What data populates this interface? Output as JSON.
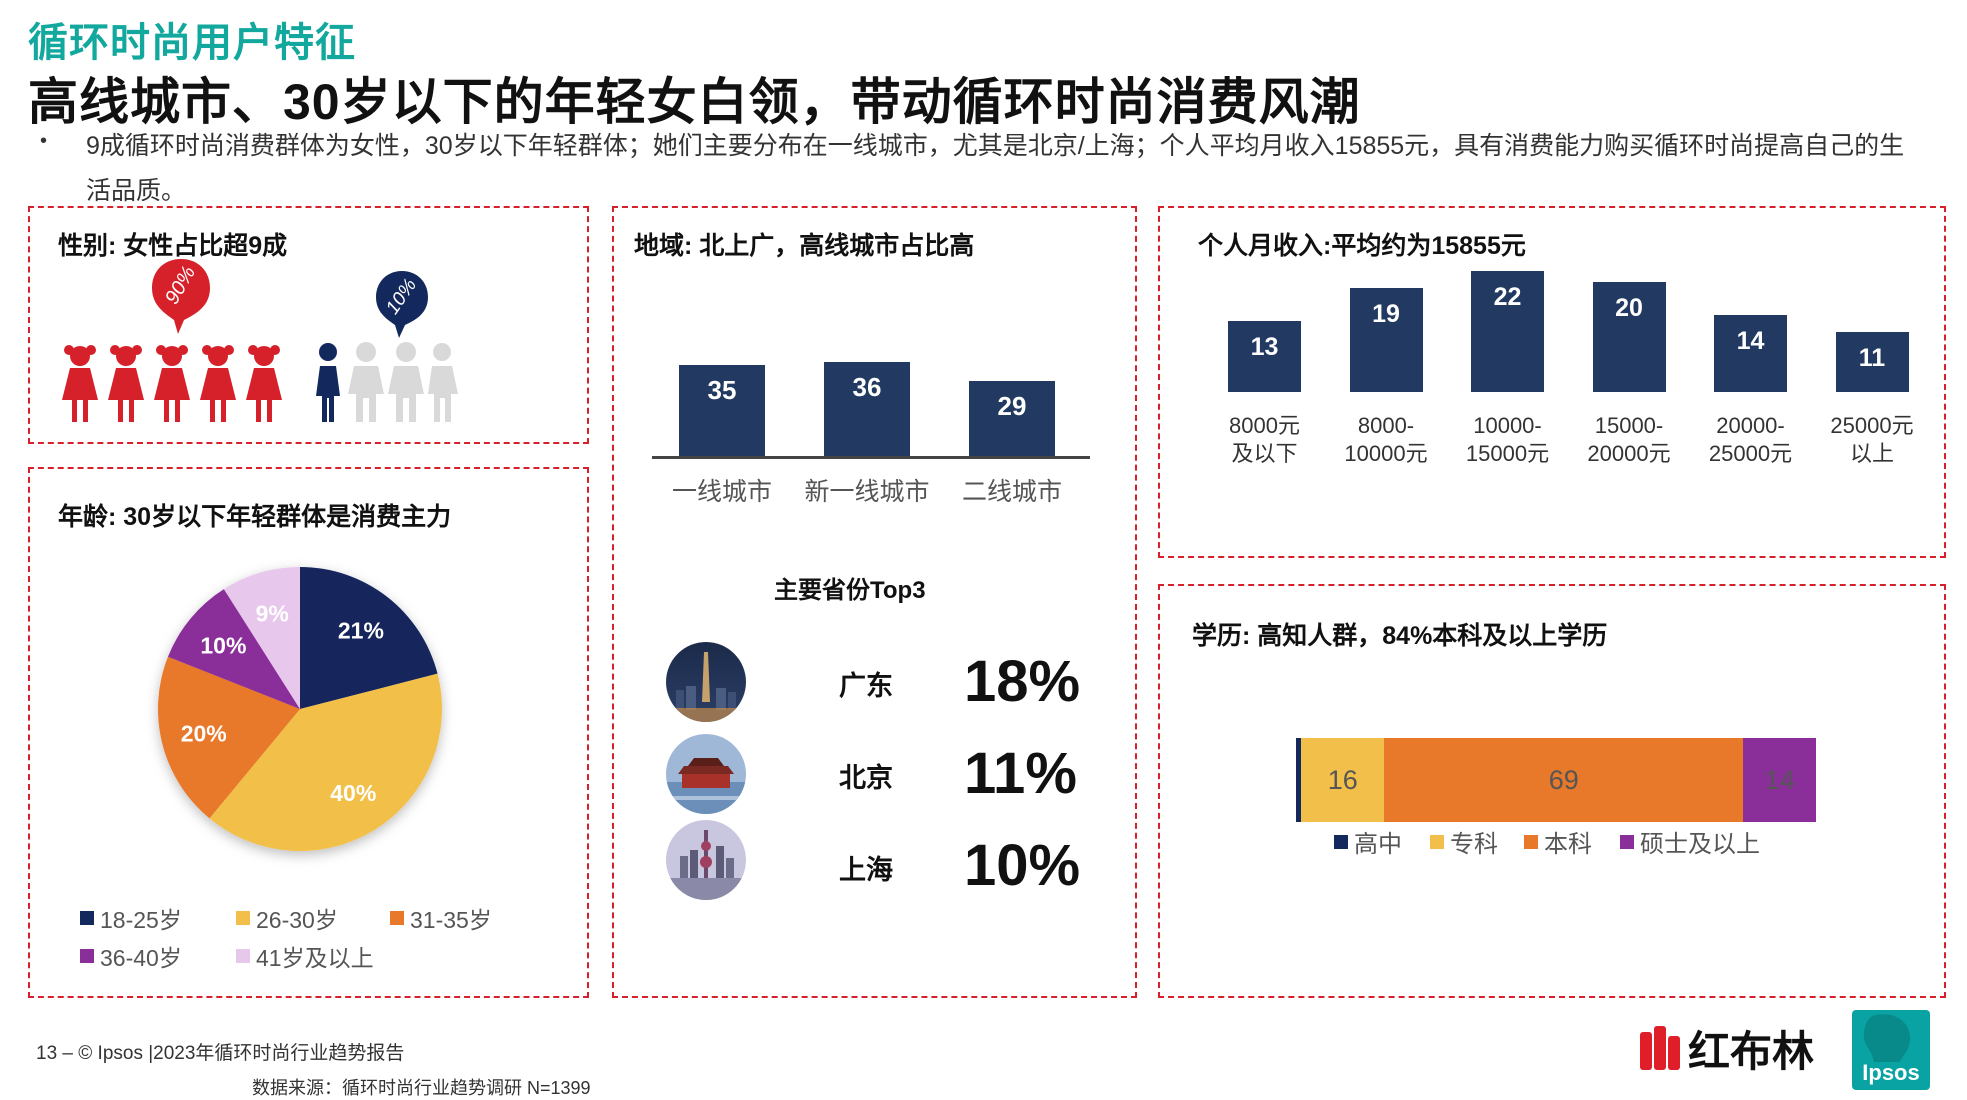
{
  "header": {
    "kicker": "循环时尚用户特征",
    "headline": "高线城市、30岁以下的年轻女白领，带动循环时尚消费风潮",
    "bullet_symbol": "•",
    "bullet": "9成循环时尚消费群体为女性，30岁以下年轻群体；她们主要分布在一线城市，尤其是北京/上海；个人平均月收入15855元，具有消费能力购买循环时尚提高自己的生活品质。"
  },
  "gender": {
    "title": "性别: 女性占比超9成",
    "female_badge": "90%",
    "male_badge": "10%"
  },
  "region": {
    "title": "地域: 北上广，高线城市占比高",
    "top3_title": "主要省份Top3",
    "provinces": [
      {
        "name": "广东",
        "value": "18%"
      },
      {
        "name": "北京",
        "value": "11%"
      },
      {
        "name": "上海",
        "value": "10%"
      }
    ]
  },
  "income_title": "个人月收入:平均约为15855元",
  "age_title": "年龄: 30岁以下年轻群体是消费主力",
  "education_title": "学历: 高知人群，84%本科及以上学历",
  "footer": {
    "page": "13 –  © Ipsos |2023年循环时尚行业趋势报告",
    "source": "数据来源：循环时尚行业趋势调研 N=1399",
    "brand": "红布林",
    "ipsos": "Ipsos"
  },
  "colors": {
    "navy": "#223a61",
    "red": "#d6202a",
    "teal": "#12a89d",
    "age": [
      "#13285c",
      "#f2c04a",
      "#e8792a",
      "#8a2f9a",
      "#e8c7ec"
    ],
    "edu": [
      "#13285c",
      "#f2c04a",
      "#e8792a",
      "#8a2f9a"
    ]
  },
  "chart_data": [
    {
      "id": "city_tier",
      "type": "bar",
      "title": "地域: 北上广，高线城市占比高",
      "categories": [
        "一线城市",
        "新一线城市",
        "二线城市"
      ],
      "values": [
        35,
        36,
        29
      ],
      "ylim": [
        0,
        40
      ]
    },
    {
      "id": "income",
      "type": "bar",
      "title": "个人月收入:平均约为15855元",
      "categories": [
        [
          "8000元",
          "及以下"
        ],
        [
          "8000-",
          "10000元"
        ],
        [
          "10000-",
          "15000元"
        ],
        [
          "15000-",
          "20000元"
        ],
        [
          "20000-",
          "25000元"
        ],
        [
          "25000元",
          "以上"
        ]
      ],
      "values": [
        13,
        19,
        22,
        20,
        14,
        11
      ],
      "ylim": [
        0,
        25
      ]
    },
    {
      "id": "age",
      "type": "pie",
      "title": "年龄: 30岁以下年轻群体是消费主力",
      "labels": [
        "18-25岁",
        "26-30岁",
        "31-35岁",
        "36-40岁",
        "41岁及以上"
      ],
      "values": [
        21,
        40,
        20,
        10,
        9
      ],
      "value_labels": [
        "21%",
        "40%",
        "20%",
        "10%",
        "9%"
      ]
    },
    {
      "id": "education",
      "type": "bar",
      "stacked": true,
      "orientation": "horizontal",
      "title": "学历: 高知人群，84%本科及以上学历",
      "legend": [
        "高中",
        "专科",
        "本科",
        "硕士及以上"
      ],
      "values": [
        1,
        16,
        69,
        14
      ],
      "value_labels": [
        "",
        "16",
        "69",
        "14"
      ]
    }
  ]
}
